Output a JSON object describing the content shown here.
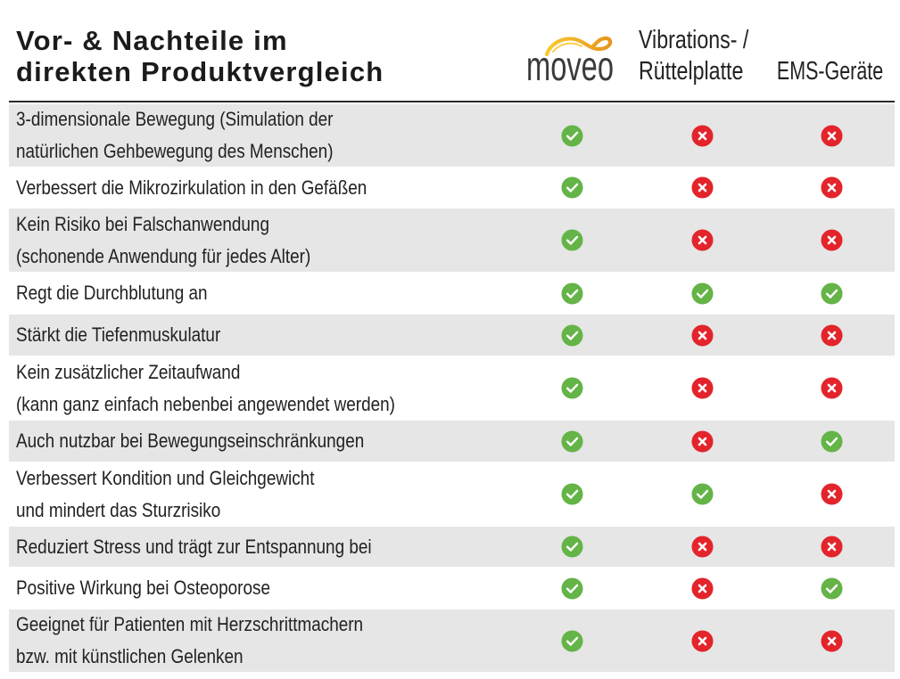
{
  "header": {
    "title_lines": [
      "Vor- & Nachteile im",
      "direkten Produktvergleich"
    ],
    "columns": [
      {
        "logo_text": "moveo"
      },
      {
        "lines": [
          "Vibrations- /",
          "Rüttelplatte"
        ]
      },
      {
        "lines": [
          "EMS-Geräte"
        ]
      }
    ]
  },
  "rows": [
    {
      "lines": [
        "3-dimensionale Bewegung (Simulation der",
        "natürlichen Gehbewegung des Menschen)"
      ],
      "values": [
        true,
        false,
        false
      ]
    },
    {
      "lines": [
        "Verbessert die Mikrozirkulation in den Gefäßen"
      ],
      "values": [
        true,
        false,
        false
      ]
    },
    {
      "lines": [
        "Kein Risiko bei Falschanwendung",
        "(schonende Anwendung für jedes Alter)"
      ],
      "values": [
        true,
        false,
        false
      ]
    },
    {
      "lines": [
        "Regt die Durchblutung an"
      ],
      "values": [
        true,
        true,
        true
      ]
    },
    {
      "lines": [
        "Stärkt die Tiefenmuskulatur"
      ],
      "values": [
        true,
        false,
        false
      ]
    },
    {
      "lines": [
        "Kein zusätzlicher Zeitaufwand",
        "(kann ganz einfach nebenbei angewendet werden)"
      ],
      "values": [
        true,
        false,
        false
      ]
    },
    {
      "lines": [
        "Auch nutzbar bei Bewegungseinschränkungen"
      ],
      "values": [
        true,
        false,
        true
      ]
    },
    {
      "lines": [
        "Verbessert Kondition und Gleichgewicht",
        "und mindert das Sturzrisiko"
      ],
      "values": [
        true,
        true,
        false
      ]
    },
    {
      "lines": [
        "Reduziert Stress und trägt zur Entspannung bei"
      ],
      "values": [
        true,
        false,
        false
      ]
    },
    {
      "lines": [
        "Positive Wirkung bei Osteoporose"
      ],
      "values": [
        true,
        false,
        true
      ]
    },
    {
      "lines": [
        "Geeignet für Patienten mit Herzschrittmachern",
        "bzw. mit künstlichen Gelenken"
      ],
      "values": [
        true,
        false,
        false
      ]
    }
  ],
  "icons": {
    "yes": "check-circle-icon",
    "no": "cross-circle-icon"
  },
  "colors": {
    "check": "#64b447",
    "cross": "#e3242b",
    "row_shade": "#e6e6e6",
    "rule": "#2b2b2b",
    "logo_swoosh": "#f0a81c",
    "logo_text": "#3a3a3a"
  }
}
